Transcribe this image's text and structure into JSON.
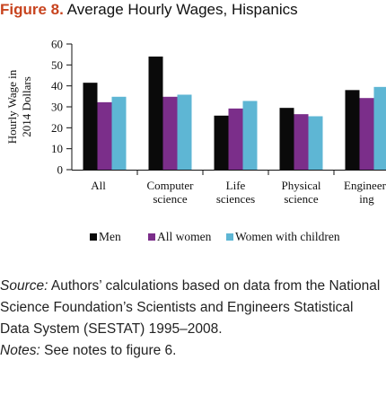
{
  "figure": {
    "label": "Figure 8.",
    "title": "Average Hourly Wages, Hispanics"
  },
  "colors": {
    "men": "#0a0a0a",
    "all_women": "#7b2e8a",
    "women_with_children": "#5eb6d4",
    "title_accent": "#c8441f"
  },
  "chart_data": {
    "type": "bar",
    "categories": [
      [
        "All"
      ],
      [
        "Computer",
        "science"
      ],
      [
        "Life",
        "sciences"
      ],
      [
        "Physical",
        "science"
      ],
      [
        "Engineer-",
        "ing"
      ]
    ],
    "series": [
      {
        "name": "Men",
        "values": [
          41.5,
          54,
          25.8,
          29.5,
          38
        ]
      },
      {
        "name": "All women",
        "values": [
          32.2,
          34.8,
          29.2,
          26.5,
          34.2
        ]
      },
      {
        "name": "Women with children",
        "values": [
          34.8,
          35.8,
          32.8,
          25.5,
          39.5
        ]
      }
    ],
    "ylabel_lines": [
      "Hourly Wage in",
      "2014 Dollars"
    ],
    "ylim": [
      0,
      60
    ],
    "yticks": [
      0,
      10,
      20,
      30,
      40,
      50,
      60
    ],
    "grid": false,
    "legend_position": "bottom"
  },
  "notes": {
    "source_label": "Source:",
    "source_text": " Authors’ calculations based on data from the National Science Foundation’s Scientists and Engineers Statistical Data System (SESTAT) 1995–2008.",
    "notes_label": "Notes:",
    "notes_text": " See notes to figure 6."
  }
}
